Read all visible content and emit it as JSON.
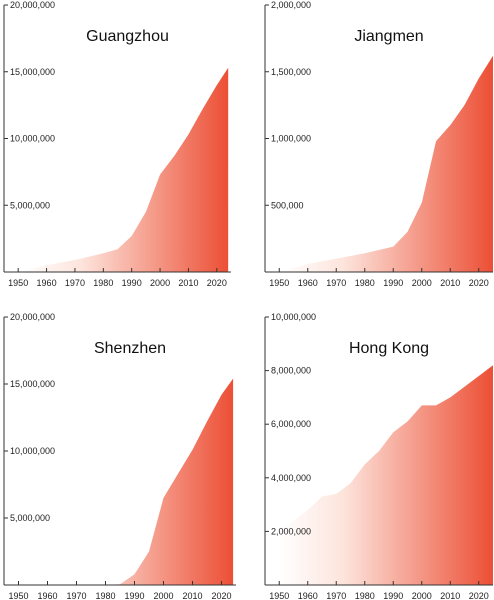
{
  "colors": {
    "area_start": "#ffffff",
    "area_end": "#ec4f35",
    "axis": "#333333"
  },
  "chart_data": [
    {
      "type": "area",
      "title": "Guangzhou",
      "xlim": [
        1945,
        2025
      ],
      "ylim": [
        0,
        20000000
      ],
      "x_ticks": [
        "1950",
        "1960",
        "1970",
        "1980",
        "1990",
        "2000",
        "2010",
        "2020"
      ],
      "y_ticks": [
        "5,000,000",
        "10,000,000",
        "15,000,000",
        "20,000,000"
      ],
      "x": [
        1950,
        1960,
        1970,
        1980,
        1985,
        1990,
        1995,
        2000,
        2005,
        2010,
        2015,
        2020,
        2024
      ],
      "values": [
        0,
        500000,
        900000,
        1400000,
        1700000,
        2700000,
        4500000,
        7300000,
        8700000,
        10300000,
        12200000,
        14000000,
        15300000
      ]
    },
    {
      "type": "area",
      "title": "Jiangmen",
      "xlim": [
        1945,
        2025
      ],
      "ylim": [
        0,
        2000000
      ],
      "x_ticks": [
        "1950",
        "1960",
        "1970",
        "1980",
        "1990",
        "2000",
        "2010",
        "2020"
      ],
      "y_ticks": [
        "500,000",
        "1,000,000",
        "1,500,000",
        "2,000,000"
      ],
      "x": [
        1950,
        1960,
        1970,
        1980,
        1990,
        1995,
        2000,
        2005,
        2010,
        2015,
        2020,
        2025
      ],
      "values": [
        0,
        60000,
        100000,
        140000,
        190000,
        300000,
        520000,
        980000,
        1100000,
        1250000,
        1450000,
        1620000
      ]
    },
    {
      "type": "area",
      "title": "Shenzhen",
      "xlim": [
        1945,
        2025
      ],
      "ylim": [
        0,
        20000000
      ],
      "x_ticks": [
        "1950",
        "1960",
        "1970",
        "1980",
        "1990",
        "2000",
        "2010",
        "2020"
      ],
      "y_ticks": [
        "5,000,000",
        "10,000,000",
        "15,000,000",
        "20,000,000"
      ],
      "x": [
        1950,
        1980,
        1985,
        1990,
        1995,
        2000,
        2005,
        2010,
        2015,
        2020,
        2024
      ],
      "values": [
        0,
        0,
        50000,
        800000,
        2500000,
        6500000,
        8300000,
        10100000,
        12200000,
        14200000,
        15400000
      ]
    },
    {
      "type": "area",
      "title": "Hong Kong",
      "xlim": [
        1945,
        2025
      ],
      "ylim": [
        0,
        10000000
      ],
      "x_ticks": [
        "1950",
        "1960",
        "1970",
        "1980",
        "1990",
        "2000",
        "2010",
        "2020"
      ],
      "y_ticks": [
        "2,000,000",
        "4,000,000",
        "6,000,000",
        "8,000,000",
        "10,000,000"
      ],
      "x": [
        1950,
        1955,
        1960,
        1965,
        1970,
        1975,
        1980,
        1985,
        1990,
        1995,
        2000,
        2005,
        2010,
        2015,
        2020,
        2025
      ],
      "values": [
        2000000,
        2400000,
        2800000,
        3300000,
        3400000,
        3800000,
        4500000,
        5000000,
        5700000,
        6100000,
        6700000,
        6700000,
        7000000,
        7400000,
        7800000,
        8200000
      ]
    }
  ]
}
